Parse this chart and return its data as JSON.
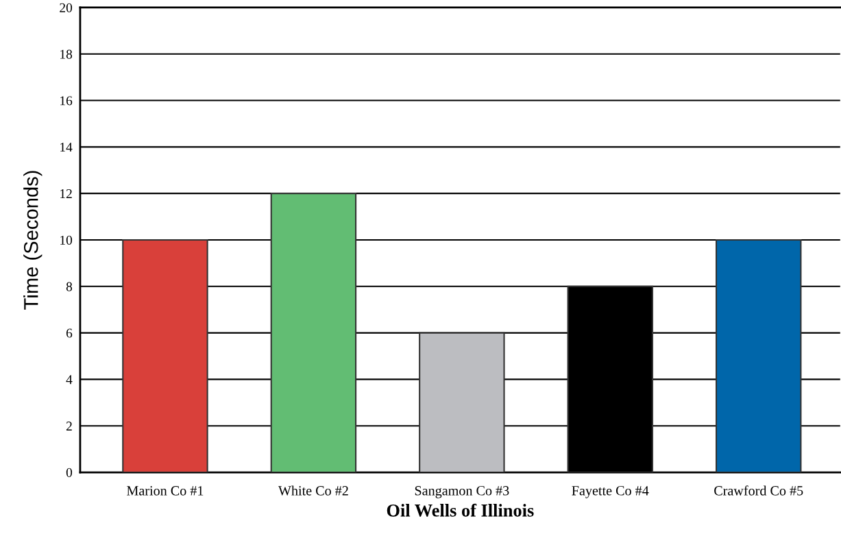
{
  "chart_data": {
    "type": "bar",
    "categories": [
      "Marion Co #1",
      "White Co #2",
      "Sangamon Co #3",
      "Fayette Co #4",
      "Crawford Co #5"
    ],
    "values": [
      10,
      12,
      6,
      8,
      10
    ],
    "colors": [
      "#d9403a",
      "#62bd73",
      "#bcbdc1",
      "#000000",
      "#0066aa"
    ],
    "xlabel": "Oil Wells of Illinois",
    "ylabel": "Time (Seconds)",
    "ylim": [
      0,
      20
    ],
    "yticks": [
      0,
      2,
      4,
      6,
      8,
      10,
      12,
      14,
      16,
      18,
      20
    ],
    "grid": "y",
    "legend": false
  }
}
